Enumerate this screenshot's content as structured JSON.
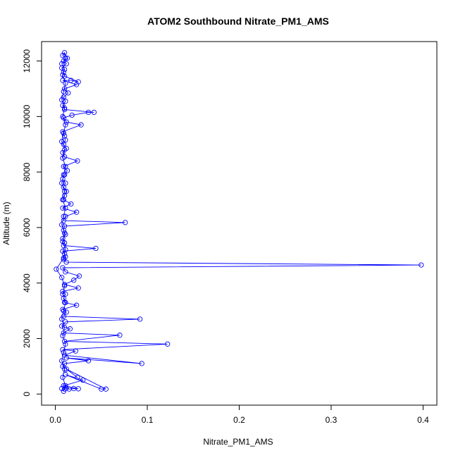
{
  "chart_data": {
    "type": "scatter",
    "title": "ATOM2 Southbound Nitrate_PM1_AMS",
    "xlabel": "Nitrate_PM1_AMS",
    "ylabel": "Altitude (m)",
    "xlim": [
      -0.015,
      0.415
    ],
    "ylim": [
      -400,
      12700
    ],
    "x_ticks": [
      0,
      0.1,
      0.2,
      0.3,
      0.4
    ],
    "x_tick_labels": [
      "0.0",
      "0.1",
      "0.2",
      "0.3",
      "0.4"
    ],
    "y_ticks": [
      0,
      2000,
      4000,
      6000,
      8000,
      10000,
      12000
    ],
    "y_tick_labels": [
      "0",
      "2000",
      "4000",
      "6000",
      "8000",
      "10000",
      "12000"
    ],
    "grid": false,
    "connected": true,
    "marker": "open-circle",
    "color": "#0000ff",
    "series": [
      {
        "points": [
          [
            0.007,
            200
          ],
          [
            0.01,
            180
          ],
          [
            0.012,
            220
          ],
          [
            0.015,
            180
          ],
          [
            0.02,
            200
          ],
          [
            0.025,
            190
          ],
          [
            0.009,
            300
          ],
          [
            0.03,
            500
          ],
          [
            0.011,
            700
          ],
          [
            0.05,
            180
          ],
          [
            0.055,
            180
          ],
          [
            0.012,
            900
          ],
          [
            0.024,
            600
          ],
          [
            0.008,
            1000
          ],
          [
            0.01,
            1100
          ],
          [
            0.036,
            1200
          ],
          [
            0.012,
            1300
          ],
          [
            0.094,
            1100
          ],
          [
            0.01,
            1400
          ],
          [
            0.022,
            1550
          ],
          [
            0.008,
            1600
          ],
          [
            0.122,
            1800
          ],
          [
            0.01,
            1900
          ],
          [
            0.07,
            2120
          ],
          [
            0.009,
            2200
          ],
          [
            0.016,
            2350
          ],
          [
            0.007,
            2450
          ],
          [
            0.011,
            2600
          ],
          [
            0.092,
            2700
          ],
          [
            0.009,
            2800
          ],
          [
            0.012,
            2950
          ],
          [
            0.008,
            3050
          ],
          [
            0.023,
            3200
          ],
          [
            0.01,
            3300
          ],
          [
            0.009,
            3450
          ],
          [
            0.011,
            3600
          ],
          [
            0.008,
            3700
          ],
          [
            0.025,
            3820
          ],
          [
            0.01,
            3950
          ],
          [
            0.02,
            4100
          ],
          [
            0.026,
            4250
          ],
          [
            0.011,
            4400
          ],
          [
            0.008,
            4550
          ],
          [
            0.398,
            4650
          ],
          [
            0.012,
            4750
          ],
          [
            0.009,
            4850
          ],
          [
            0.011,
            4950
          ],
          [
            0.01,
            5050
          ],
          [
            0.008,
            5150
          ],
          [
            0.044,
            5250
          ],
          [
            0.009,
            5350
          ],
          [
            0.01,
            5450
          ],
          [
            0.008,
            5600
          ],
          [
            0.011,
            5750
          ],
          [
            0.009,
            5900
          ],
          [
            0.01,
            6050
          ],
          [
            0.076,
            6180
          ],
          [
            0.009,
            6250
          ],
          [
            0.011,
            6400
          ],
          [
            0.023,
            6550
          ],
          [
            0.008,
            6700
          ],
          [
            0.017,
            6850
          ],
          [
            0.009,
            7000
          ],
          [
            0.01,
            7150
          ],
          [
            0.012,
            7300
          ],
          [
            0.009,
            7450
          ],
          [
            0.011,
            7600
          ],
          [
            0.008,
            7750
          ],
          [
            0.01,
            7900
          ],
          [
            0.013,
            8050
          ],
          [
            0.009,
            8200
          ],
          [
            0.024,
            8400
          ],
          [
            0.01,
            8550
          ],
          [
            0.008,
            8700
          ],
          [
            0.012,
            8850
          ],
          [
            0.009,
            9000
          ],
          [
            0.011,
            9150
          ],
          [
            0.01,
            9300
          ],
          [
            0.008,
            9450
          ],
          [
            0.028,
            9700
          ],
          [
            0.012,
            9800
          ],
          [
            0.009,
            9950
          ],
          [
            0.018,
            10050
          ],
          [
            0.036,
            10150
          ],
          [
            0.042,
            10150
          ],
          [
            0.01,
            10250
          ],
          [
            0.008,
            10400
          ],
          [
            0.011,
            10550
          ],
          [
            0.009,
            10700
          ],
          [
            0.014,
            10850
          ],
          [
            0.01,
            11000
          ],
          [
            0.023,
            11150
          ],
          [
            0.008,
            11300
          ],
          [
            0.017,
            11300
          ],
          [
            0.025,
            11250
          ],
          [
            0.01,
            11450
          ],
          [
            0.009,
            11600
          ],
          [
            0.007,
            11750
          ],
          [
            0.012,
            11900
          ],
          [
            0.009,
            12000
          ],
          [
            0.011,
            12100
          ],
          [
            0.008,
            12200
          ],
          [
            0.01,
            12300
          ],
          [
            0.013,
            12100
          ],
          [
            0.007,
            11900
          ],
          [
            0.01,
            11700
          ],
          [
            0.008,
            11500
          ],
          [
            0.011,
            11200
          ],
          [
            0.009,
            10900
          ],
          [
            0.007,
            10600
          ],
          [
            0.01,
            10300
          ],
          [
            0.008,
            10000
          ],
          [
            0.011,
            9700
          ],
          [
            0.009,
            9400
          ],
          [
            0.007,
            9100
          ],
          [
            0.01,
            8800
          ],
          [
            0.008,
            8500
          ],
          [
            0.011,
            8200
          ],
          [
            0.009,
            7900
          ],
          [
            0.007,
            7600
          ],
          [
            0.01,
            7300
          ],
          [
            0.008,
            7000
          ],
          [
            0.011,
            6700
          ],
          [
            0.009,
            6400
          ],
          [
            0.007,
            6100
          ],
          [
            0.01,
            5800
          ],
          [
            0.008,
            5500
          ],
          [
            0.011,
            5200
          ],
          [
            0.009,
            4900
          ],
          [
            0.001,
            4500
          ],
          [
            0.007,
            4200
          ],
          [
            0.01,
            3900
          ],
          [
            0.008,
            3600
          ],
          [
            0.011,
            3300
          ],
          [
            0.009,
            3000
          ],
          [
            0.007,
            2700
          ],
          [
            0.01,
            2400
          ],
          [
            0.008,
            2100
          ],
          [
            0.011,
            1800
          ],
          [
            0.009,
            1500
          ],
          [
            0.007,
            1200
          ],
          [
            0.01,
            900
          ],
          [
            0.008,
            600
          ],
          [
            0.011,
            300
          ],
          [
            0.009,
            100
          ]
        ]
      }
    ]
  }
}
